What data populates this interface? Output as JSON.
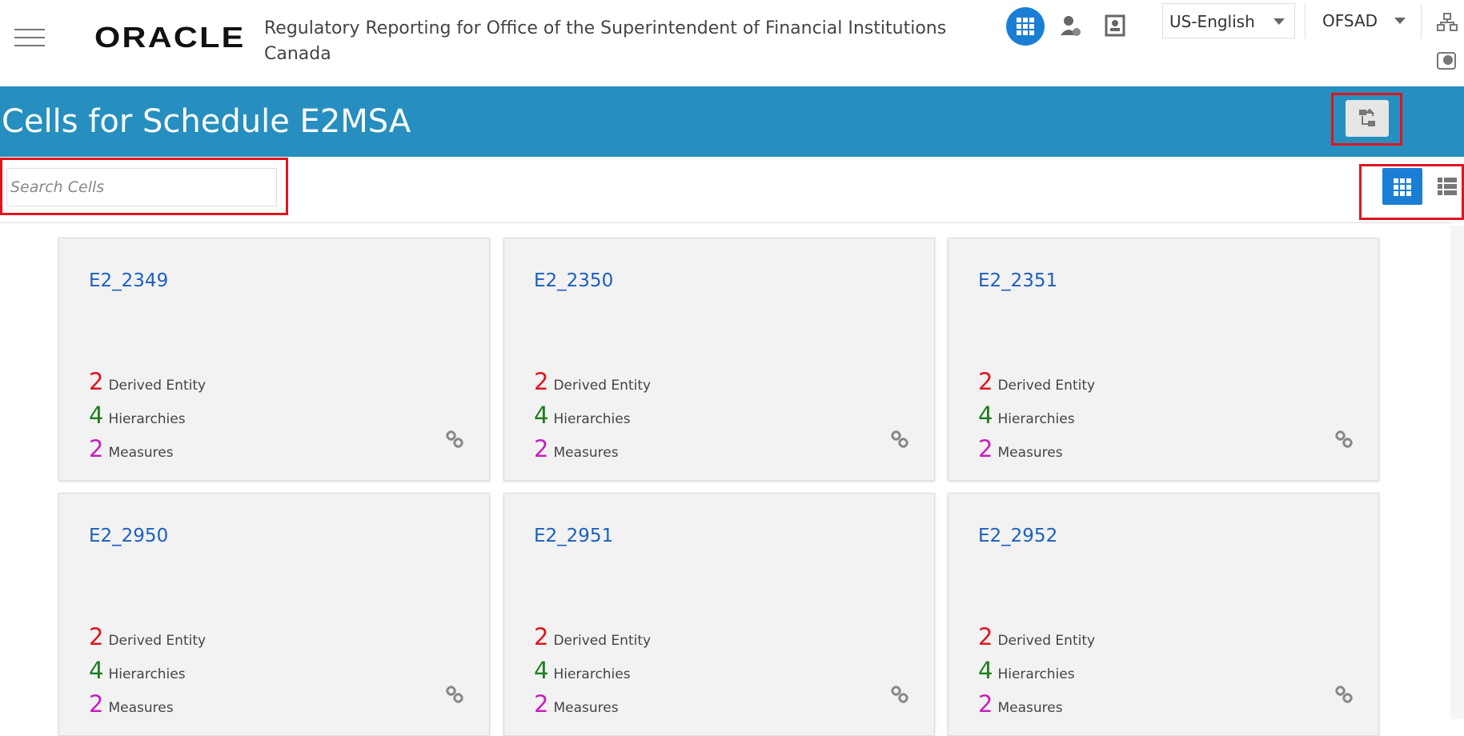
{
  "header": {
    "logo": "ORACLE",
    "title": "Regulatory Reporting for Office of the Superintendent of Financial Institutions Canada",
    "language": "US-English",
    "user": "OFSAD"
  },
  "page": {
    "title": "Cells for Schedule E2MSA",
    "search_placeholder": "Search Cells"
  },
  "cards": [
    {
      "name": "E2_2349",
      "stats": [
        {
          "count": 2,
          "label": "Derived Entity"
        },
        {
          "count": 4,
          "label": "Hierarchies"
        },
        {
          "count": 2,
          "label": "Measures"
        }
      ]
    },
    {
      "name": "E2_2350",
      "stats": [
        {
          "count": 2,
          "label": "Derived Entity"
        },
        {
          "count": 4,
          "label": "Hierarchies"
        },
        {
          "count": 2,
          "label": "Measures"
        }
      ]
    },
    {
      "name": "E2_2351",
      "stats": [
        {
          "count": 2,
          "label": "Derived Entity"
        },
        {
          "count": 4,
          "label": "Hierarchies"
        },
        {
          "count": 2,
          "label": "Measures"
        }
      ]
    },
    {
      "name": "E2_2950",
      "stats": [
        {
          "count": 2,
          "label": "Derived Entity"
        },
        {
          "count": 4,
          "label": "Hierarchies"
        },
        {
          "count": 2,
          "label": "Measures"
        }
      ]
    },
    {
      "name": "E2_2951",
      "stats": [
        {
          "count": 2,
          "label": "Derived Entity"
        },
        {
          "count": 4,
          "label": "Hierarchies"
        },
        {
          "count": 2,
          "label": "Measures"
        }
      ]
    },
    {
      "name": "E2_2952",
      "stats": [
        {
          "count": 2,
          "label": "Derived Entity"
        },
        {
          "count": 4,
          "label": "Hierarchies"
        },
        {
          "count": 2,
          "label": "Measures"
        }
      ]
    }
  ]
}
